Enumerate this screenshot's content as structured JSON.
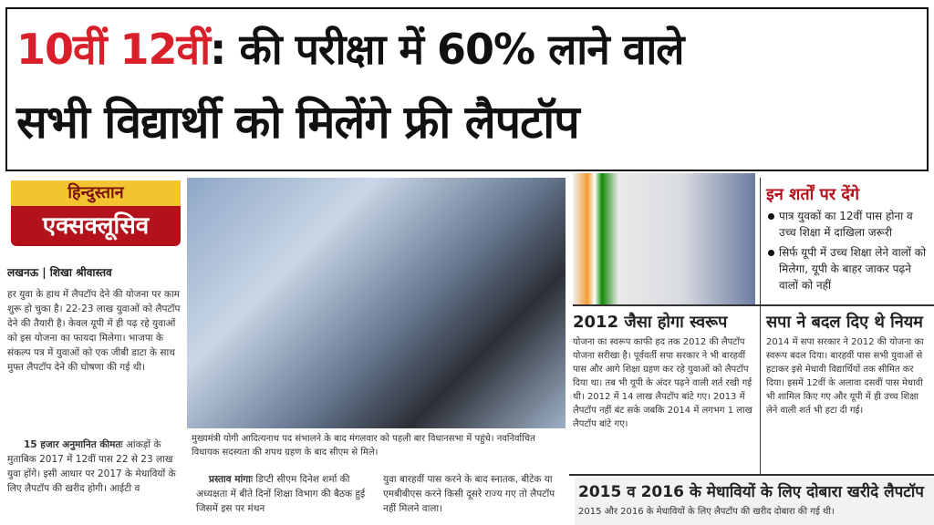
{
  "headline": {
    "line1_red": "10वीं 12वीं",
    "line1_rest": ": की परीक्षा में 60% लाने वाले",
    "line2": "सभी विद्यार्थी को मिलेंगे फ्री लैपटॉप"
  },
  "brand": {
    "top": "हिन्दुस्तान",
    "bottom": "एक्सक्लूसिव"
  },
  "byline": "लखनऊ | शिखा श्रीवास्तव",
  "left_article": {
    "para1": "हर युवा के हाथ में लैपटॉप देने की योजना पर काम शुरू हो चुका है। 22-23 लाख युवाओं को लैपटॉप देने की तैयारी है। केवल यूपी में ही पढ़ रहे युवाओं को इस योजना का फायदा मिलेगा। भाजपा के संकल्प पत्र में युवाओं को एक जीबी डाटा के साथ मुफ्त लैपटॉप देने की घोषणा की गई थी।",
    "para2_lead": "15 हजार अनुमानित कीमतः",
    "para2": "आंकड़ों के मुताबिक 2017 में 12वीं पास 22 से 23 लाख युवा होंगे। इसी आधार पर 2017 के मेधावियों के लिए लैपटॉप की खरीद होगी। आईटी व"
  },
  "photo_caption": "मुख्यमंत्री योगी आदित्यनाथ पद संभालने के बाद मंगलवार को पहली बार विधानसभा में पहुंचे। नवनिर्वाचित विधायक सदस्यता की शपथ ग्रहण के बाद सीएम से मिले।",
  "proposal": {
    "lead": "प्रस्ताव मांगाः",
    "text": "डिप्टी सीएम दिनेश शर्मा की अध्यक्षता में बीते दिनों शिक्षा विभाग की बैठक हुई जिसमें इस पर मंथन",
    "text2": "युवा बारहवीं पास करने के बाद स्नातक, बीटेक या एमबीबीएस करने किसी दूसरे राज्य गए तो लैपटॉप नहीं मिलने वाला।"
  },
  "conditions": {
    "title": "इन शर्तों पर देंगे",
    "items": [
      "पात्र युवकों का 12वीं पास होना व उच्च शिक्षा में दाखिला जरूरी",
      "सिर्फ यूपी में उच्च शिक्षा लेने वालों को मिलेगा, यूपी के बाहर जाकर पढ़ने वालों को नहीं"
    ]
  },
  "box2012": {
    "title": "2012 जैसा होगा स्वरूप",
    "text": "योजना का स्वरूप काफी हद तक 2012 की लैपटॉप योजना सरीखा है। पूर्ववर्ती सपा सरकार ने भी बारहवीं पास और आगे शिक्षा ग्रहण कर रहे युवाओं को लैपटॉप दिया था। तब भी यूपी के अंदर पढ़ने वाली शर्त रखी गई थी। 2012 में 14 लाख लैपटॉप बांटे गए। 2013 में लैपटॉप नहीं बंट सके जबकि 2014 में लगभग 1 लाख लैपटॉप बांटे गए।"
  },
  "boxSP": {
    "title": "सपा ने बदल दिए थे नियम",
    "text": "2014 में सपा सरकार ने 2012 की योजना का स्वरूप बदल दिया। बारहवीं पास सभी युवाओं से हटाकर इसे मेधावी विद्यार्थियों तक सीमित कर दिया। इसमें 12वीं के अलावा दसवीं पास मेधावी भी शामिल किए गए और यूपी में ही उच्च शिक्षा लेने वाली शर्त भी हटा दी गई।"
  },
  "bottom": {
    "title": "2015 व 2016 के मेधावियों के लिए दोबारा खरीदे लैपटॉप",
    "text": "2015 और 2016 के मेधावियों के लिए लैपटॉप की खरीद दोबारा की गई थी।"
  },
  "colors": {
    "accent_red": "#d9202a",
    "brand_yellow": "#f4c430",
    "brand_red": "#b3121c"
  }
}
